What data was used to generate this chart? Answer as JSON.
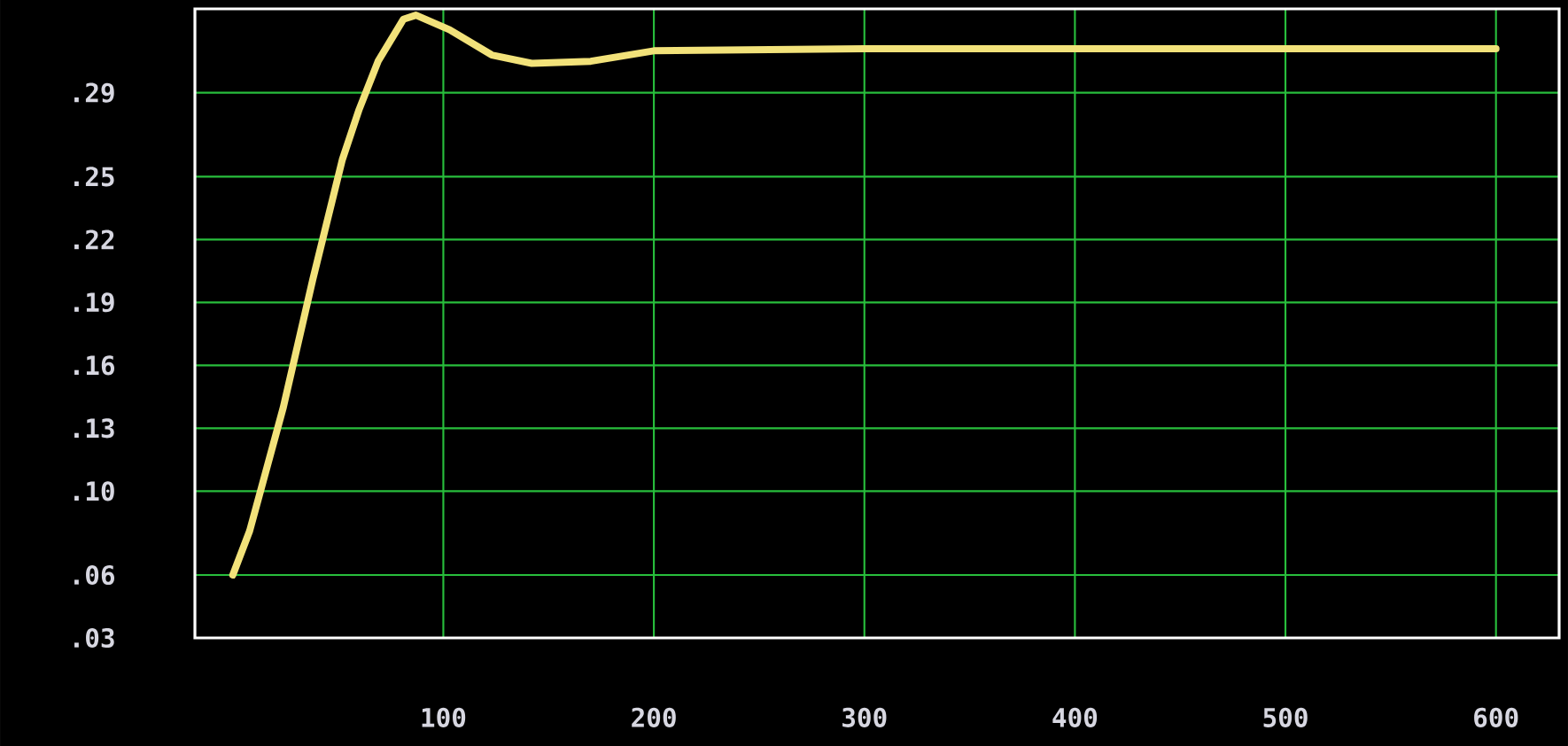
{
  "chart_data": {
    "type": "line",
    "x": [
      0,
      8,
      24,
      38,
      52,
      60,
      69,
      81,
      87,
      103,
      123,
      142,
      170,
      200,
      300,
      400,
      500,
      600
    ],
    "series": [
      {
        "color": "#f2e27a",
        "values": [
          0.06,
          0.081,
          0.14,
          0.201,
          0.258,
          0.282,
          0.305,
          0.325,
          0.327,
          0.32,
          0.308,
          0.304,
          0.305,
          0.31,
          0.311,
          0.311,
          0.311,
          0.311
        ]
      }
    ],
    "xlim": [
      -18,
      630
    ],
    "ylim": [
      0.03,
      0.33
    ],
    "xticks": [
      100,
      200,
      300,
      400,
      500,
      600
    ],
    "yticks": [
      {
        "value": 0.03,
        "label": ".03"
      },
      {
        "value": 0.06,
        "label": ".06"
      },
      {
        "value": 0.1,
        "label": ".10"
      },
      {
        "value": 0.13,
        "label": ".13"
      },
      {
        "value": 0.16,
        "label": ".16"
      },
      {
        "value": 0.19,
        "label": ".19"
      },
      {
        "value": 0.22,
        "label": ".22"
      },
      {
        "value": 0.25,
        "label": ".25"
      },
      {
        "value": 0.29,
        "label": ".29"
      }
    ],
    "grid": true,
    "marker": "none",
    "line_style": "solid"
  }
}
